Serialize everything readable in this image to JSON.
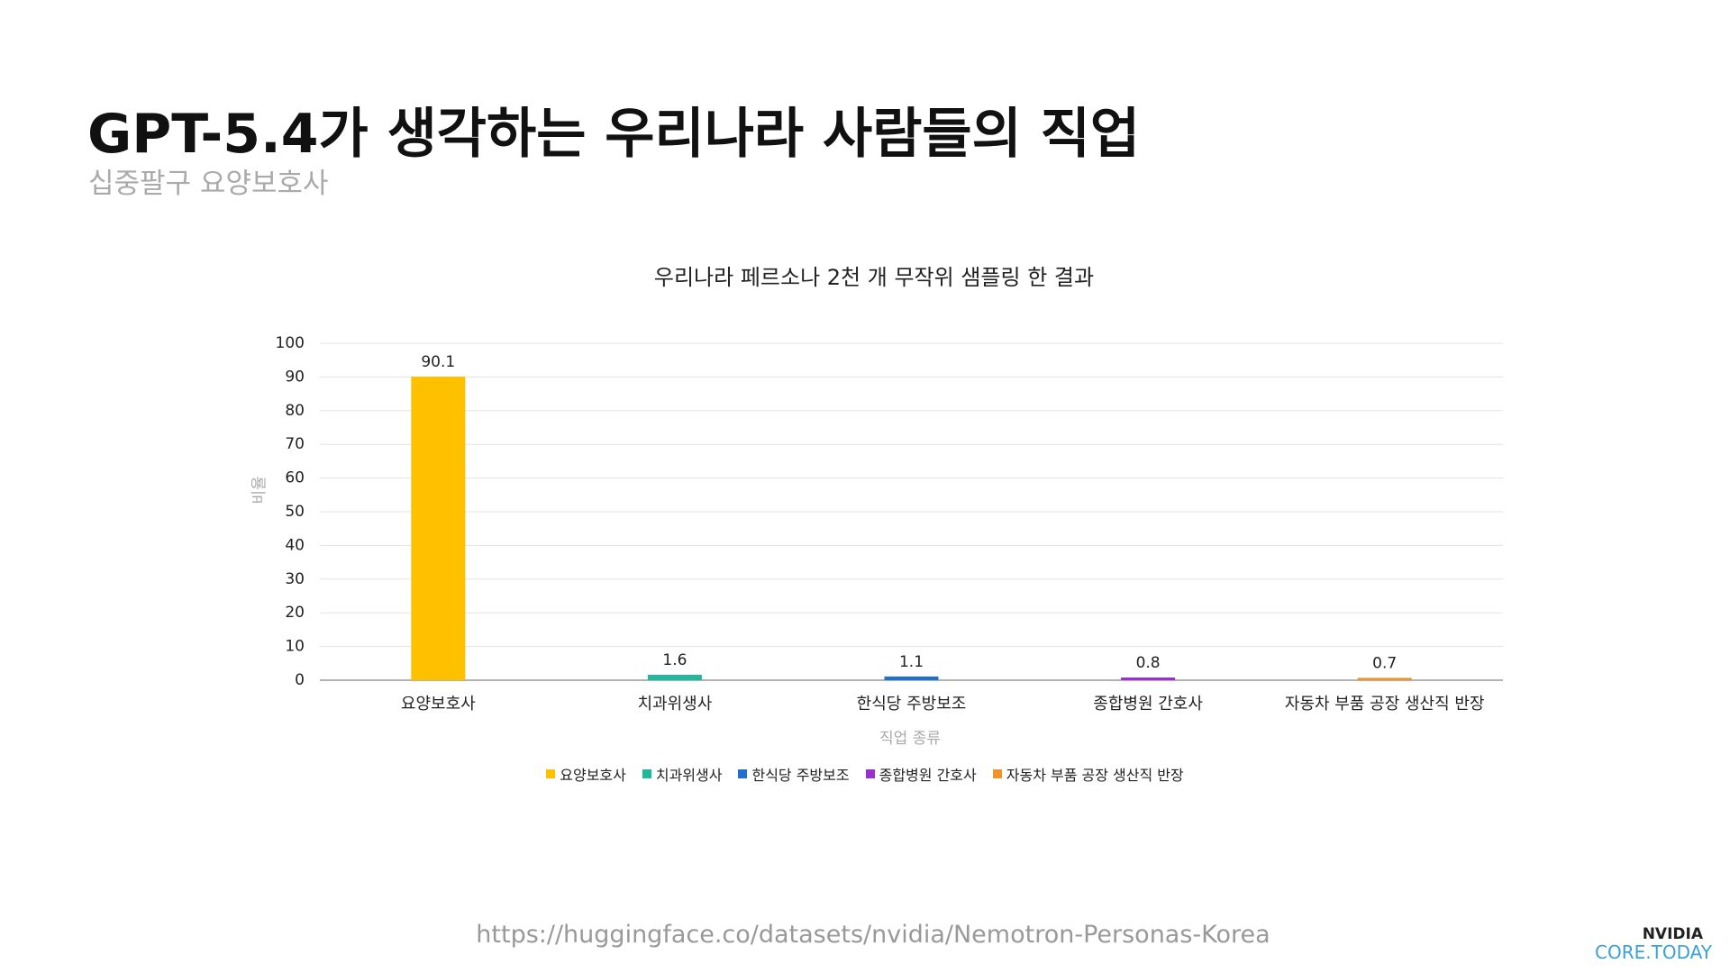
{
  "header": {
    "title": "GPT-5.4가 생각하는 우리나라 사람들의 직업",
    "subtitle": "십중팔구 요양보호사"
  },
  "chart_data": {
    "type": "bar",
    "title": "우리나라 페르소나 2천 개 무작위 샘플링 한 결과",
    "xlabel": "직업 종류",
    "ylabel": "비율",
    "categories": [
      "요양보호사",
      "치과위생사",
      "한식당 주방보조",
      "종합병원 간호사",
      "자동차 부품 공장 생산직 반장"
    ],
    "values": [
      90.1,
      1.6,
      1.1,
      0.8,
      0.7
    ],
    "colors": [
      "#ffc000",
      "#1fb89a",
      "#1f6fd0",
      "#9b30d0",
      "#f0942a"
    ],
    "ylim": [
      0,
      100
    ],
    "yticks": [
      0,
      10,
      20,
      30,
      40,
      50,
      60,
      70,
      80,
      90,
      100
    ],
    "grid": true,
    "legend": "bottom"
  },
  "footer": {
    "source": "https://huggingface.co/datasets/nvidia/Nemotron-Personas-Korea",
    "logo_top": "NVIDIA",
    "logo_bottom": "CORE.TODAY"
  }
}
